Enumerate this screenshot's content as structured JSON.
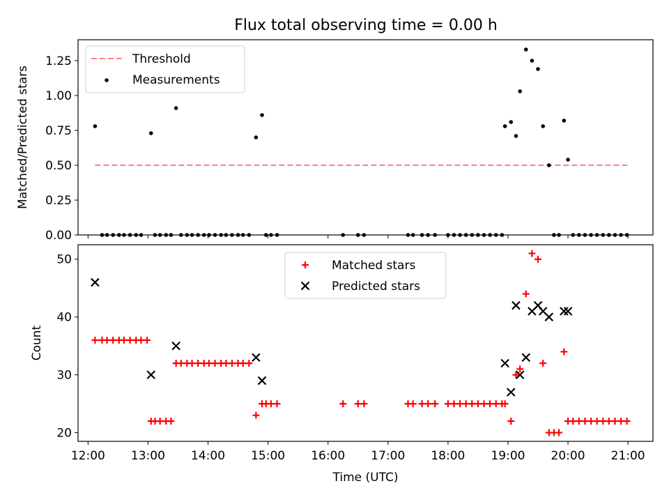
{
  "title": "Flux total observing time = 0.00 h",
  "chart_data": [
    {
      "type": "scatter",
      "panel": "top",
      "ylabel": "Matched/Predicted stars",
      "xlabel": "",
      "xlim": [
        "11:50",
        "21:25"
      ],
      "ylim": [
        0,
        1.4
      ],
      "y_ticks": [
        "0.00",
        "0.25",
        "0.50",
        "0.75",
        "1.00",
        "1.25"
      ],
      "x_ticks": [
        "12:00",
        "13:00",
        "14:00",
        "15:00",
        "16:00",
        "17:00",
        "18:00",
        "19:00",
        "20:00",
        "21:00"
      ],
      "legend_position": "upper-left",
      "threshold": {
        "name": "Threshold",
        "y": 0.5,
        "x_start": "12:07",
        "x_end": "21:00",
        "color": "#ff7f7f",
        "style": "dashed"
      },
      "series": [
        {
          "name": "Measurements",
          "color": "#000000",
          "points": [
            [
              "12:07",
              0.78
            ],
            [
              "12:14",
              0.0
            ],
            [
              "12:19",
              0.0
            ],
            [
              "12:25",
              0.0
            ],
            [
              "12:31",
              0.0
            ],
            [
              "12:36",
              0.0
            ],
            [
              "12:42",
              0.0
            ],
            [
              "12:48",
              0.0
            ],
            [
              "12:53",
              0.0
            ],
            [
              "13:03",
              0.73
            ],
            [
              "13:07",
              0.0
            ],
            [
              "13:12",
              0.0
            ],
            [
              "13:18",
              0.0
            ],
            [
              "13:23",
              0.0
            ],
            [
              "13:28",
              0.91
            ],
            [
              "13:33",
              0.0
            ],
            [
              "13:39",
              0.0
            ],
            [
              "13:44",
              0.0
            ],
            [
              "13:50",
              0.0
            ],
            [
              "13:56",
              0.0
            ],
            [
              "14:01",
              0.0
            ],
            [
              "14:07",
              0.0
            ],
            [
              "14:13",
              0.0
            ],
            [
              "14:18",
              0.0
            ],
            [
              "14:24",
              0.0
            ],
            [
              "14:30",
              0.0
            ],
            [
              "14:35",
              0.0
            ],
            [
              "14:41",
              0.0
            ],
            [
              "14:48",
              0.7
            ],
            [
              "14:54",
              0.86
            ],
            [
              "14:58",
              0.0
            ],
            [
              "15:03",
              0.0
            ],
            [
              "15:09",
              0.0
            ],
            [
              "16:15",
              0.0
            ],
            [
              "16:30",
              0.0
            ],
            [
              "16:36",
              0.0
            ],
            [
              "17:20",
              0.0
            ],
            [
              "17:25",
              0.0
            ],
            [
              "17:34",
              0.0
            ],
            [
              "17:40",
              0.0
            ],
            [
              "17:47",
              0.0
            ],
            [
              "18:00",
              0.0
            ],
            [
              "18:06",
              0.0
            ],
            [
              "18:12",
              0.0
            ],
            [
              "18:18",
              0.0
            ],
            [
              "18:24",
              0.0
            ],
            [
              "18:30",
              0.0
            ],
            [
              "18:36",
              0.0
            ],
            [
              "18:42",
              0.0
            ],
            [
              "18:48",
              0.0
            ],
            [
              "18:54",
              0.0
            ],
            [
              "18:57",
              0.78
            ],
            [
              "19:03",
              0.81
            ],
            [
              "19:08",
              0.71
            ],
            [
              "19:12",
              1.03
            ],
            [
              "19:18",
              1.33
            ],
            [
              "19:24",
              1.25
            ],
            [
              "19:30",
              1.19
            ],
            [
              "19:35",
              0.78
            ],
            [
              "19:41",
              0.5
            ],
            [
              "19:46",
              0.0
            ],
            [
              "19:51",
              0.0
            ],
            [
              "19:56",
              0.82
            ],
            [
              "20:00",
              0.54
            ],
            [
              "20:05",
              0.0
            ],
            [
              "20:11",
              0.0
            ],
            [
              "20:17",
              0.0
            ],
            [
              "20:23",
              0.0
            ],
            [
              "20:29",
              0.0
            ],
            [
              "20:35",
              0.0
            ],
            [
              "20:41",
              0.0
            ],
            [
              "20:47",
              0.0
            ],
            [
              "20:53",
              0.0
            ],
            [
              "20:59",
              0.0
            ]
          ]
        }
      ]
    },
    {
      "type": "scatter",
      "panel": "bottom",
      "ylabel": "Count",
      "xlabel": "Time (UTC)",
      "xlim": [
        "11:50",
        "21:25"
      ],
      "ylim": [
        18.5,
        52.5
      ],
      "y_ticks": [
        "20",
        "30",
        "40",
        "50"
      ],
      "x_ticks": [
        "12:00",
        "13:00",
        "14:00",
        "15:00",
        "16:00",
        "17:00",
        "18:00",
        "19:00",
        "20:00",
        "21:00"
      ],
      "legend_position": "upper-center",
      "series": [
        {
          "name": "Matched stars",
          "color": "#ff0000",
          "marker": "plus",
          "points": [
            [
              "12:07",
              36
            ],
            [
              "12:14",
              36
            ],
            [
              "12:19",
              36
            ],
            [
              "12:25",
              36
            ],
            [
              "12:31",
              36
            ],
            [
              "12:36",
              36
            ],
            [
              "12:42",
              36
            ],
            [
              "12:48",
              36
            ],
            [
              "12:53",
              36
            ],
            [
              "12:59",
              36
            ],
            [
              "13:03",
              22
            ],
            [
              "13:07",
              22
            ],
            [
              "13:12",
              22
            ],
            [
              "13:18",
              22
            ],
            [
              "13:23",
              22
            ],
            [
              "13:28",
              32
            ],
            [
              "13:33",
              32
            ],
            [
              "13:39",
              32
            ],
            [
              "13:44",
              32
            ],
            [
              "13:50",
              32
            ],
            [
              "13:56",
              32
            ],
            [
              "14:01",
              32
            ],
            [
              "14:07",
              32
            ],
            [
              "14:13",
              32
            ],
            [
              "14:18",
              32
            ],
            [
              "14:24",
              32
            ],
            [
              "14:30",
              32
            ],
            [
              "14:35",
              32
            ],
            [
              "14:41",
              32
            ],
            [
              "14:48",
              23
            ],
            [
              "14:54",
              25
            ],
            [
              "14:58",
              25
            ],
            [
              "15:03",
              25
            ],
            [
              "15:09",
              25
            ],
            [
              "16:15",
              25
            ],
            [
              "16:30",
              25
            ],
            [
              "16:36",
              25
            ],
            [
              "17:20",
              25
            ],
            [
              "17:25",
              25
            ],
            [
              "17:34",
              25
            ],
            [
              "17:40",
              25
            ],
            [
              "17:47",
              25
            ],
            [
              "18:00",
              25
            ],
            [
              "18:06",
              25
            ],
            [
              "18:12",
              25
            ],
            [
              "18:18",
              25
            ],
            [
              "18:24",
              25
            ],
            [
              "18:30",
              25
            ],
            [
              "18:36",
              25
            ],
            [
              "18:42",
              25
            ],
            [
              "18:48",
              25
            ],
            [
              "18:54",
              25
            ],
            [
              "18:57",
              25
            ],
            [
              "19:03",
              22
            ],
            [
              "19:08",
              30
            ],
            [
              "19:12",
              31
            ],
            [
              "19:18",
              44
            ],
            [
              "19:24",
              51
            ],
            [
              "19:30",
              50
            ],
            [
              "19:35",
              32
            ],
            [
              "19:41",
              20
            ],
            [
              "19:46",
              20
            ],
            [
              "19:51",
              20
            ],
            [
              "19:56",
              34
            ],
            [
              "20:00",
              22
            ],
            [
              "20:05",
              22
            ],
            [
              "20:11",
              22
            ],
            [
              "20:17",
              22
            ],
            [
              "20:23",
              22
            ],
            [
              "20:29",
              22
            ],
            [
              "20:35",
              22
            ],
            [
              "20:41",
              22
            ],
            [
              "20:47",
              22
            ],
            [
              "20:53",
              22
            ],
            [
              "20:59",
              22
            ]
          ]
        },
        {
          "name": "Predicted stars",
          "color": "#000000",
          "marker": "x",
          "points": [
            [
              "12:07",
              46
            ],
            [
              "13:03",
              30
            ],
            [
              "13:28",
              35
            ],
            [
              "14:48",
              33
            ],
            [
              "14:54",
              29
            ],
            [
              "18:57",
              32
            ],
            [
              "19:03",
              27
            ],
            [
              "19:08",
              42
            ],
            [
              "19:12",
              30
            ],
            [
              "19:18",
              33
            ],
            [
              "19:24",
              41
            ],
            [
              "19:30",
              42
            ],
            [
              "19:35",
              41
            ],
            [
              "19:41",
              40
            ],
            [
              "19:56",
              41
            ],
            [
              "20:00",
              41
            ]
          ]
        }
      ]
    }
  ]
}
